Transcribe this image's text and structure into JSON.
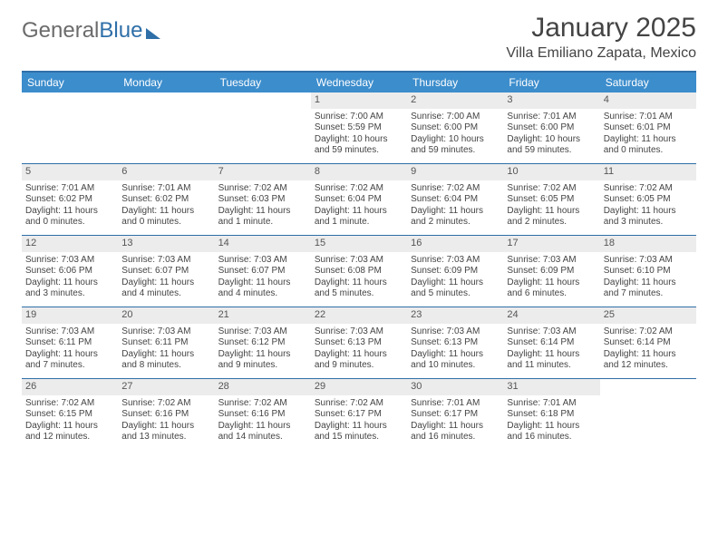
{
  "brand": {
    "part1": "General",
    "part2": "Blue"
  },
  "title": "January 2025",
  "location": "Villa Emiliano Zapata, Mexico",
  "header_bg": "#3c8dcc",
  "rule_color": "#2f6fa8",
  "daynum_bg": "#ececec",
  "text_color": "#444444",
  "dow": [
    "Sunday",
    "Monday",
    "Tuesday",
    "Wednesday",
    "Thursday",
    "Friday",
    "Saturday"
  ],
  "weeks": [
    [
      {
        "n": "",
        "lines": []
      },
      {
        "n": "",
        "lines": []
      },
      {
        "n": "",
        "lines": []
      },
      {
        "n": "1",
        "lines": [
          "Sunrise: 7:00 AM",
          "Sunset: 5:59 PM",
          "Daylight: 10 hours and 59 minutes."
        ]
      },
      {
        "n": "2",
        "lines": [
          "Sunrise: 7:00 AM",
          "Sunset: 6:00 PM",
          "Daylight: 10 hours and 59 minutes."
        ]
      },
      {
        "n": "3",
        "lines": [
          "Sunrise: 7:01 AM",
          "Sunset: 6:00 PM",
          "Daylight: 10 hours and 59 minutes."
        ]
      },
      {
        "n": "4",
        "lines": [
          "Sunrise: 7:01 AM",
          "Sunset: 6:01 PM",
          "Daylight: 11 hours and 0 minutes."
        ]
      }
    ],
    [
      {
        "n": "5",
        "lines": [
          "Sunrise: 7:01 AM",
          "Sunset: 6:02 PM",
          "Daylight: 11 hours and 0 minutes."
        ]
      },
      {
        "n": "6",
        "lines": [
          "Sunrise: 7:01 AM",
          "Sunset: 6:02 PM",
          "Daylight: 11 hours and 0 minutes."
        ]
      },
      {
        "n": "7",
        "lines": [
          "Sunrise: 7:02 AM",
          "Sunset: 6:03 PM",
          "Daylight: 11 hours and 1 minute."
        ]
      },
      {
        "n": "8",
        "lines": [
          "Sunrise: 7:02 AM",
          "Sunset: 6:04 PM",
          "Daylight: 11 hours and 1 minute."
        ]
      },
      {
        "n": "9",
        "lines": [
          "Sunrise: 7:02 AM",
          "Sunset: 6:04 PM",
          "Daylight: 11 hours and 2 minutes."
        ]
      },
      {
        "n": "10",
        "lines": [
          "Sunrise: 7:02 AM",
          "Sunset: 6:05 PM",
          "Daylight: 11 hours and 2 minutes."
        ]
      },
      {
        "n": "11",
        "lines": [
          "Sunrise: 7:02 AM",
          "Sunset: 6:05 PM",
          "Daylight: 11 hours and 3 minutes."
        ]
      }
    ],
    [
      {
        "n": "12",
        "lines": [
          "Sunrise: 7:03 AM",
          "Sunset: 6:06 PM",
          "Daylight: 11 hours and 3 minutes."
        ]
      },
      {
        "n": "13",
        "lines": [
          "Sunrise: 7:03 AM",
          "Sunset: 6:07 PM",
          "Daylight: 11 hours and 4 minutes."
        ]
      },
      {
        "n": "14",
        "lines": [
          "Sunrise: 7:03 AM",
          "Sunset: 6:07 PM",
          "Daylight: 11 hours and 4 minutes."
        ]
      },
      {
        "n": "15",
        "lines": [
          "Sunrise: 7:03 AM",
          "Sunset: 6:08 PM",
          "Daylight: 11 hours and 5 minutes."
        ]
      },
      {
        "n": "16",
        "lines": [
          "Sunrise: 7:03 AM",
          "Sunset: 6:09 PM",
          "Daylight: 11 hours and 5 minutes."
        ]
      },
      {
        "n": "17",
        "lines": [
          "Sunrise: 7:03 AM",
          "Sunset: 6:09 PM",
          "Daylight: 11 hours and 6 minutes."
        ]
      },
      {
        "n": "18",
        "lines": [
          "Sunrise: 7:03 AM",
          "Sunset: 6:10 PM",
          "Daylight: 11 hours and 7 minutes."
        ]
      }
    ],
    [
      {
        "n": "19",
        "lines": [
          "Sunrise: 7:03 AM",
          "Sunset: 6:11 PM",
          "Daylight: 11 hours and 7 minutes."
        ]
      },
      {
        "n": "20",
        "lines": [
          "Sunrise: 7:03 AM",
          "Sunset: 6:11 PM",
          "Daylight: 11 hours and 8 minutes."
        ]
      },
      {
        "n": "21",
        "lines": [
          "Sunrise: 7:03 AM",
          "Sunset: 6:12 PM",
          "Daylight: 11 hours and 9 minutes."
        ]
      },
      {
        "n": "22",
        "lines": [
          "Sunrise: 7:03 AM",
          "Sunset: 6:13 PM",
          "Daylight: 11 hours and 9 minutes."
        ]
      },
      {
        "n": "23",
        "lines": [
          "Sunrise: 7:03 AM",
          "Sunset: 6:13 PM",
          "Daylight: 11 hours and 10 minutes."
        ]
      },
      {
        "n": "24",
        "lines": [
          "Sunrise: 7:03 AM",
          "Sunset: 6:14 PM",
          "Daylight: 11 hours and 11 minutes."
        ]
      },
      {
        "n": "25",
        "lines": [
          "Sunrise: 7:02 AM",
          "Sunset: 6:14 PM",
          "Daylight: 11 hours and 12 minutes."
        ]
      }
    ],
    [
      {
        "n": "26",
        "lines": [
          "Sunrise: 7:02 AM",
          "Sunset: 6:15 PM",
          "Daylight: 11 hours and 12 minutes."
        ]
      },
      {
        "n": "27",
        "lines": [
          "Sunrise: 7:02 AM",
          "Sunset: 6:16 PM",
          "Daylight: 11 hours and 13 minutes."
        ]
      },
      {
        "n": "28",
        "lines": [
          "Sunrise: 7:02 AM",
          "Sunset: 6:16 PM",
          "Daylight: 11 hours and 14 minutes."
        ]
      },
      {
        "n": "29",
        "lines": [
          "Sunrise: 7:02 AM",
          "Sunset: 6:17 PM",
          "Daylight: 11 hours and 15 minutes."
        ]
      },
      {
        "n": "30",
        "lines": [
          "Sunrise: 7:01 AM",
          "Sunset: 6:17 PM",
          "Daylight: 11 hours and 16 minutes."
        ]
      },
      {
        "n": "31",
        "lines": [
          "Sunrise: 7:01 AM",
          "Sunset: 6:18 PM",
          "Daylight: 11 hours and 16 minutes."
        ]
      },
      {
        "n": "",
        "lines": []
      }
    ]
  ]
}
